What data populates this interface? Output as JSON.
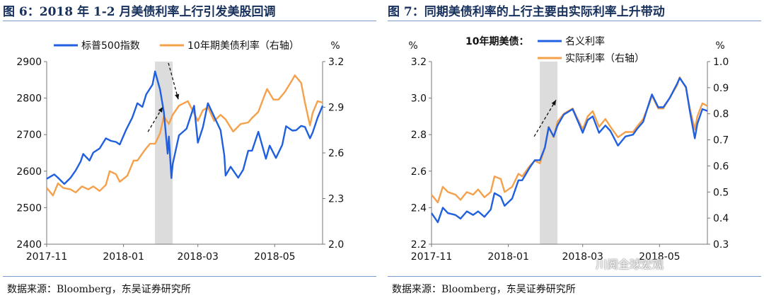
{
  "watermark": "川阅全球宏观",
  "chart_data": [
    {
      "type": "line",
      "title": "图 6：2018 年 1-2 月美债利率上行引发美股回调",
      "source": "数据来源：Bloomberg，东吴证券研究所",
      "x_ticks": [
        "2017-11",
        "2018-01",
        "2018-03",
        "2018-05"
      ],
      "x_range": [
        "2017-11-01",
        "2018-06-08"
      ],
      "left_axis": {
        "range": [
          2400,
          2900
        ],
        "ticks": [
          2400,
          2500,
          2600,
          2700,
          2800,
          2900
        ]
      },
      "right_axis": {
        "unit": "%",
        "range": [
          2.0,
          3.2
        ],
        "ticks": [
          "2.0",
          "2.3",
          "2.6",
          "2.9",
          "3.2"
        ]
      },
      "shaded_region": [
        "2018-01-26",
        "2018-02-09"
      ],
      "series": [
        {
          "name": "标普500指数",
          "axis": "left",
          "color": "#1f5fe0",
          "points": [
            [
              "2017-11-01",
              2579
            ],
            [
              "2017-11-07",
              2591
            ],
            [
              "2017-11-10",
              2582
            ],
            [
              "2017-11-15",
              2565
            ],
            [
              "2017-11-20",
              2582
            ],
            [
              "2017-11-24",
              2602
            ],
            [
              "2017-11-28",
              2627
            ],
            [
              "2017-11-30",
              2647
            ],
            [
              "2017-12-05",
              2629
            ],
            [
              "2017-12-08",
              2651
            ],
            [
              "2017-12-13",
              2662
            ],
            [
              "2017-12-18",
              2690
            ],
            [
              "2017-12-22",
              2683
            ],
            [
              "2017-12-26",
              2680
            ],
            [
              "2017-12-29",
              2673
            ],
            [
              "2018-01-03",
              2713
            ],
            [
              "2018-01-08",
              2747
            ],
            [
              "2018-01-12",
              2786
            ],
            [
              "2018-01-16",
              2776
            ],
            [
              "2018-01-19",
              2810
            ],
            [
              "2018-01-24",
              2837
            ],
            [
              "2018-01-26",
              2873
            ],
            [
              "2018-01-30",
              2823
            ],
            [
              "2018-02-02",
              2762
            ],
            [
              "2018-02-05",
              2648
            ],
            [
              "2018-02-06",
              2695
            ],
            [
              "2018-02-08",
              2581
            ],
            [
              "2018-02-09",
              2619
            ],
            [
              "2018-02-14",
              2698
            ],
            [
              "2018-02-20",
              2716
            ],
            [
              "2018-02-26",
              2779
            ],
            [
              "2018-03-01",
              2678
            ],
            [
              "2018-03-05",
              2720
            ],
            [
              "2018-03-09",
              2786
            ],
            [
              "2018-03-14",
              2749
            ],
            [
              "2018-03-19",
              2712
            ],
            [
              "2018-03-22",
              2643
            ],
            [
              "2018-03-23",
              2588
            ],
            [
              "2018-03-27",
              2612
            ],
            [
              "2018-04-02",
              2582
            ],
            [
              "2018-04-06",
              2604
            ],
            [
              "2018-04-10",
              2656
            ],
            [
              "2018-04-13",
              2656
            ],
            [
              "2018-04-18",
              2708
            ],
            [
              "2018-04-24",
              2634
            ],
            [
              "2018-04-27",
              2670
            ],
            [
              "2018-05-02",
              2636
            ],
            [
              "2018-05-07",
              2672
            ],
            [
              "2018-05-10",
              2723
            ],
            [
              "2018-05-15",
              2711
            ],
            [
              "2018-05-18",
              2712
            ],
            [
              "2018-05-22",
              2724
            ],
            [
              "2018-05-25",
              2721
            ],
            [
              "2018-05-29",
              2690
            ],
            [
              "2018-05-31",
              2705
            ],
            [
              "2018-06-04",
              2746
            ],
            [
              "2018-06-08",
              2779
            ]
          ]
        },
        {
          "name": "10年期美债利率（右轴）",
          "axis": "right",
          "color": "#f5a04a",
          "points": [
            [
              "2017-11-01",
              2.37
            ],
            [
              "2017-11-06",
              2.32
            ],
            [
              "2017-11-10",
              2.4
            ],
            [
              "2017-11-14",
              2.37
            ],
            [
              "2017-11-20",
              2.36
            ],
            [
              "2017-11-24",
              2.34
            ],
            [
              "2017-11-29",
              2.38
            ],
            [
              "2017-12-04",
              2.36
            ],
            [
              "2017-12-08",
              2.38
            ],
            [
              "2017-12-13",
              2.35
            ],
            [
              "2017-12-18",
              2.39
            ],
            [
              "2017-12-21",
              2.48
            ],
            [
              "2017-12-26",
              2.46
            ],
            [
              "2017-12-29",
              2.41
            ],
            [
              "2018-01-04",
              2.45
            ],
            [
              "2018-01-09",
              2.55
            ],
            [
              "2018-01-12",
              2.55
            ],
            [
              "2018-01-18",
              2.62
            ],
            [
              "2018-01-22",
              2.66
            ],
            [
              "2018-01-26",
              2.66
            ],
            [
              "2018-01-30",
              2.73
            ],
            [
              "2018-02-02",
              2.84
            ],
            [
              "2018-02-06",
              2.79
            ],
            [
              "2018-02-09",
              2.85
            ],
            [
              "2018-02-14",
              2.91
            ],
            [
              "2018-02-21",
              2.94
            ],
            [
              "2018-02-26",
              2.86
            ],
            [
              "2018-03-01",
              2.81
            ],
            [
              "2018-03-05",
              2.88
            ],
            [
              "2018-03-09",
              2.9
            ],
            [
              "2018-03-14",
              2.81
            ],
            [
              "2018-03-19",
              2.85
            ],
            [
              "2018-03-23",
              2.82
            ],
            [
              "2018-03-29",
              2.74
            ],
            [
              "2018-04-04",
              2.79
            ],
            [
              "2018-04-10",
              2.8
            ],
            [
              "2018-04-13",
              2.83
            ],
            [
              "2018-04-18",
              2.87
            ],
            [
              "2018-04-23",
              2.98
            ],
            [
              "2018-04-25",
              3.02
            ],
            [
              "2018-04-30",
              2.95
            ],
            [
              "2018-05-04",
              2.95
            ],
            [
              "2018-05-09",
              3.0
            ],
            [
              "2018-05-15",
              3.08
            ],
            [
              "2018-05-17",
              3.11
            ],
            [
              "2018-05-22",
              3.06
            ],
            [
              "2018-05-25",
              2.93
            ],
            [
              "2018-05-29",
              2.78
            ],
            [
              "2018-05-31",
              2.86
            ],
            [
              "2018-06-04",
              2.94
            ],
            [
              "2018-06-08",
              2.93
            ]
          ]
        }
      ]
    },
    {
      "type": "line",
      "title": "图 7：同期美债利率的上行主要由实际利率上升带动",
      "source": "数据来源：Bloomberg，东吴证券研究所",
      "legend_title": "10年期美债：",
      "x_ticks": [
        "2017-11",
        "2018-01",
        "2018-03",
        "2018-05"
      ],
      "x_range": [
        "2017-11-01",
        "2018-06-08"
      ],
      "left_axis": {
        "unit": "%",
        "range": [
          2.2,
          3.2
        ],
        "ticks": [
          "2.2",
          "2.4",
          "2.6",
          "2.8",
          "3.0",
          "3.2"
        ]
      },
      "right_axis": {
        "unit": "%",
        "range": [
          0.3,
          1.0
        ],
        "ticks": [
          "0.3",
          "0.4",
          "0.5",
          "0.6",
          "0.7",
          "0.8",
          "0.9",
          "1.0"
        ]
      },
      "shaded_region": [
        "2018-01-26",
        "2018-02-09"
      ],
      "series": [
        {
          "name": "名义利率",
          "axis": "left",
          "color": "#1f5fe0",
          "points": [
            [
              "2017-11-01",
              2.37
            ],
            [
              "2017-11-06",
              2.32
            ],
            [
              "2017-11-10",
              2.4
            ],
            [
              "2017-11-14",
              2.37
            ],
            [
              "2017-11-20",
              2.36
            ],
            [
              "2017-11-24",
              2.34
            ],
            [
              "2017-11-29",
              2.38
            ],
            [
              "2017-12-04",
              2.36
            ],
            [
              "2017-12-08",
              2.38
            ],
            [
              "2017-12-13",
              2.35
            ],
            [
              "2017-12-18",
              2.39
            ],
            [
              "2017-12-21",
              2.48
            ],
            [
              "2017-12-26",
              2.46
            ],
            [
              "2017-12-29",
              2.41
            ],
            [
              "2018-01-04",
              2.45
            ],
            [
              "2018-01-09",
              2.55
            ],
            [
              "2018-01-12",
              2.55
            ],
            [
              "2018-01-18",
              2.62
            ],
            [
              "2018-01-22",
              2.66
            ],
            [
              "2018-01-26",
              2.66
            ],
            [
              "2018-01-30",
              2.73
            ],
            [
              "2018-02-02",
              2.84
            ],
            [
              "2018-02-06",
              2.79
            ],
            [
              "2018-02-09",
              2.85
            ],
            [
              "2018-02-14",
              2.91
            ],
            [
              "2018-02-21",
              2.94
            ],
            [
              "2018-02-26",
              2.86
            ],
            [
              "2018-03-01",
              2.81
            ],
            [
              "2018-03-05",
              2.88
            ],
            [
              "2018-03-09",
              2.9
            ],
            [
              "2018-03-14",
              2.81
            ],
            [
              "2018-03-19",
              2.85
            ],
            [
              "2018-03-23",
              2.82
            ],
            [
              "2018-03-29",
              2.74
            ],
            [
              "2018-04-04",
              2.79
            ],
            [
              "2018-04-10",
              2.8
            ],
            [
              "2018-04-13",
              2.83
            ],
            [
              "2018-04-18",
              2.87
            ],
            [
              "2018-04-23",
              2.98
            ],
            [
              "2018-04-25",
              3.02
            ],
            [
              "2018-04-30",
              2.95
            ],
            [
              "2018-05-04",
              2.95
            ],
            [
              "2018-05-09",
              3.0
            ],
            [
              "2018-05-15",
              3.08
            ],
            [
              "2018-05-17",
              3.11
            ],
            [
              "2018-05-22",
              3.06
            ],
            [
              "2018-05-25",
              2.93
            ],
            [
              "2018-05-29",
              2.78
            ],
            [
              "2018-05-31",
              2.86
            ],
            [
              "2018-06-04",
              2.94
            ],
            [
              "2018-06-08",
              2.93
            ]
          ]
        },
        {
          "name": "实际利率（右轴）",
          "axis": "right",
          "color": "#f5a04a",
          "points": [
            [
              "2017-11-01",
              0.49
            ],
            [
              "2017-11-06",
              0.46
            ],
            [
              "2017-11-10",
              0.52
            ],
            [
              "2017-11-14",
              0.5
            ],
            [
              "2017-11-20",
              0.49
            ],
            [
              "2017-11-24",
              0.47
            ],
            [
              "2017-11-29",
              0.5
            ],
            [
              "2017-12-04",
              0.49
            ],
            [
              "2017-12-08",
              0.51
            ],
            [
              "2017-12-13",
              0.48
            ],
            [
              "2017-12-18",
              0.5
            ],
            [
              "2017-12-21",
              0.56
            ],
            [
              "2017-12-26",
              0.55
            ],
            [
              "2017-12-29",
              0.5
            ],
            [
              "2018-01-04",
              0.52
            ],
            [
              "2018-01-09",
              0.57
            ],
            [
              "2018-01-12",
              0.56
            ],
            [
              "2018-01-18",
              0.6
            ],
            [
              "2018-01-22",
              0.62
            ],
            [
              "2018-01-26",
              0.61
            ],
            [
              "2018-01-30",
              0.67
            ],
            [
              "2018-02-02",
              0.75
            ],
            [
              "2018-02-06",
              0.71
            ],
            [
              "2018-02-09",
              0.77
            ],
            [
              "2018-02-14",
              0.8
            ],
            [
              "2018-02-21",
              0.82
            ],
            [
              "2018-02-26",
              0.77
            ],
            [
              "2018-03-01",
              0.74
            ],
            [
              "2018-03-05",
              0.79
            ],
            [
              "2018-03-09",
              0.81
            ],
            [
              "2018-03-14",
              0.75
            ],
            [
              "2018-03-19",
              0.78
            ],
            [
              "2018-03-23",
              0.75
            ],
            [
              "2018-03-29",
              0.71
            ],
            [
              "2018-04-04",
              0.73
            ],
            [
              "2018-04-10",
              0.73
            ],
            [
              "2018-04-13",
              0.75
            ],
            [
              "2018-04-18",
              0.78
            ],
            [
              "2018-04-23",
              0.84
            ],
            [
              "2018-04-25",
              0.87
            ],
            [
              "2018-04-30",
              0.82
            ],
            [
              "2018-05-04",
              0.82
            ],
            [
              "2018-05-09",
              0.86
            ],
            [
              "2018-05-15",
              0.91
            ],
            [
              "2018-05-17",
              0.94
            ],
            [
              "2018-05-22",
              0.9
            ],
            [
              "2018-05-25",
              0.82
            ],
            [
              "2018-05-29",
              0.74
            ],
            [
              "2018-05-31",
              0.79
            ],
            [
              "2018-06-04",
              0.84
            ],
            [
              "2018-06-08",
              0.83
            ]
          ]
        }
      ]
    }
  ]
}
